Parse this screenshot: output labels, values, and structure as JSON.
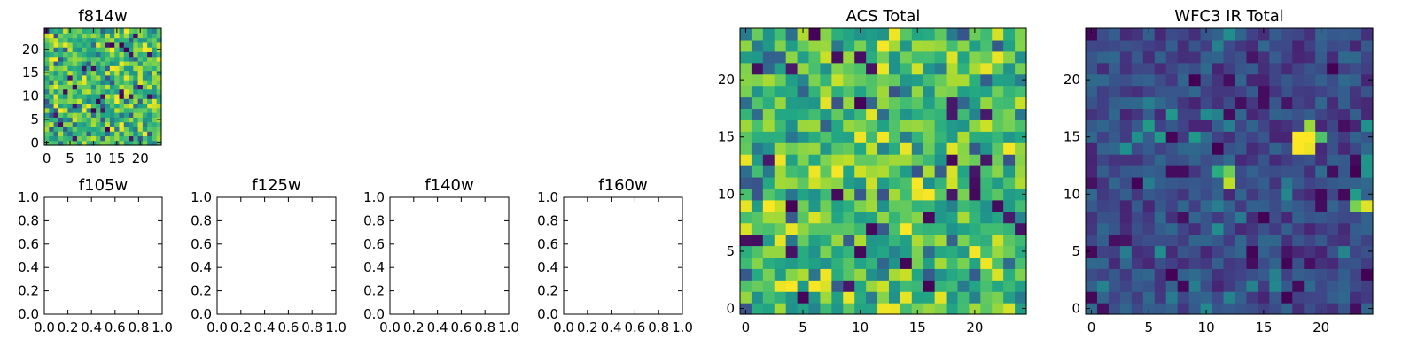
{
  "chart_data": [
    {
      "type": "heatmap",
      "id": "f814w",
      "title": "f814w",
      "grid": 25,
      "colormap": "viridis",
      "vmin": 0,
      "vmax": 1,
      "xticks": [
        0,
        5,
        10,
        15,
        20
      ],
      "yticks": [
        0,
        5,
        10,
        15,
        20
      ],
      "xlim": [
        -0.5,
        24.5
      ],
      "ylim": [
        -0.5,
        24.5
      ],
      "pattern": "noise-high",
      "seed": 11
    },
    {
      "type": "heatmap",
      "id": "f105w",
      "title": "f105w",
      "empty": true,
      "xlim": [
        0,
        1
      ],
      "ylim": [
        0,
        1
      ],
      "xticks": [
        "0.0",
        "0.2",
        "0.4",
        "0.6",
        "0.8",
        "1.0"
      ],
      "yticks": [
        "0.0",
        "0.2",
        "0.4",
        "0.6",
        "0.8",
        "1.0"
      ]
    },
    {
      "type": "heatmap",
      "id": "f125w",
      "title": "f125w",
      "empty": true,
      "xlim": [
        0,
        1
      ],
      "ylim": [
        0,
        1
      ],
      "xticks": [
        "0.0",
        "0.2",
        "0.4",
        "0.6",
        "0.8",
        "1.0"
      ],
      "yticks": [
        "0.0",
        "0.2",
        "0.4",
        "0.6",
        "0.8",
        "1.0"
      ]
    },
    {
      "type": "heatmap",
      "id": "f140w",
      "title": "f140w",
      "empty": true,
      "xlim": [
        0,
        1
      ],
      "ylim": [
        0,
        1
      ],
      "xticks": [
        "0.0",
        "0.2",
        "0.4",
        "0.6",
        "0.8",
        "1.0"
      ],
      "yticks": [
        "0.0",
        "0.2",
        "0.4",
        "0.6",
        "0.8",
        "1.0"
      ]
    },
    {
      "type": "heatmap",
      "id": "f160w",
      "title": "f160w",
      "empty": true,
      "xlim": [
        0,
        1
      ],
      "ylim": [
        0,
        1
      ],
      "xticks": [
        "0.0",
        "0.2",
        "0.4",
        "0.6",
        "0.8",
        "1.0"
      ],
      "yticks": [
        "0.0",
        "0.2",
        "0.4",
        "0.6",
        "0.8",
        "1.0"
      ]
    },
    {
      "type": "heatmap",
      "id": "acs-total",
      "title": "ACS Total",
      "grid": 25,
      "colormap": "viridis",
      "vmin": 0,
      "vmax": 1,
      "xticks": [
        0,
        5,
        10,
        15,
        20
      ],
      "yticks": [
        0,
        5,
        10,
        15,
        20
      ],
      "xlim": [
        -0.5,
        24.5
      ],
      "ylim": [
        -0.5,
        24.5
      ],
      "pattern": "noise-high",
      "seed": 23
    },
    {
      "type": "heatmap",
      "id": "wfc3-ir-total",
      "title": "WFC3 IR Total",
      "grid": 25,
      "colormap": "viridis",
      "vmin": 0,
      "vmax": 1,
      "xticks": [
        0,
        5,
        10,
        15,
        20
      ],
      "yticks": [
        0,
        5,
        10,
        15,
        20
      ],
      "xlim": [
        -0.5,
        24.5
      ],
      "ylim": [
        -0.5,
        24.5
      ],
      "pattern": "noise-low",
      "seed": 37,
      "bright_sources": [
        {
          "x": 18,
          "y": 15,
          "value": 1.0
        },
        {
          "x": 19,
          "y": 15,
          "value": 1.0
        },
        {
          "x": 18,
          "y": 14,
          "value": 1.0
        },
        {
          "x": 19,
          "y": 14,
          "value": 0.97
        },
        {
          "x": 19,
          "y": 16,
          "value": 0.85
        },
        {
          "x": 20,
          "y": 15,
          "value": 0.72
        },
        {
          "x": 12,
          "y": 12,
          "value": 0.78
        },
        {
          "x": 12,
          "y": 11,
          "value": 0.9
        },
        {
          "x": 11,
          "y": 12,
          "value": 0.62
        },
        {
          "x": 24,
          "y": 9,
          "value": 0.95
        },
        {
          "x": 23,
          "y": 9,
          "value": 0.8
        },
        {
          "x": 23,
          "y": 10,
          "value": 0.55
        }
      ]
    }
  ]
}
